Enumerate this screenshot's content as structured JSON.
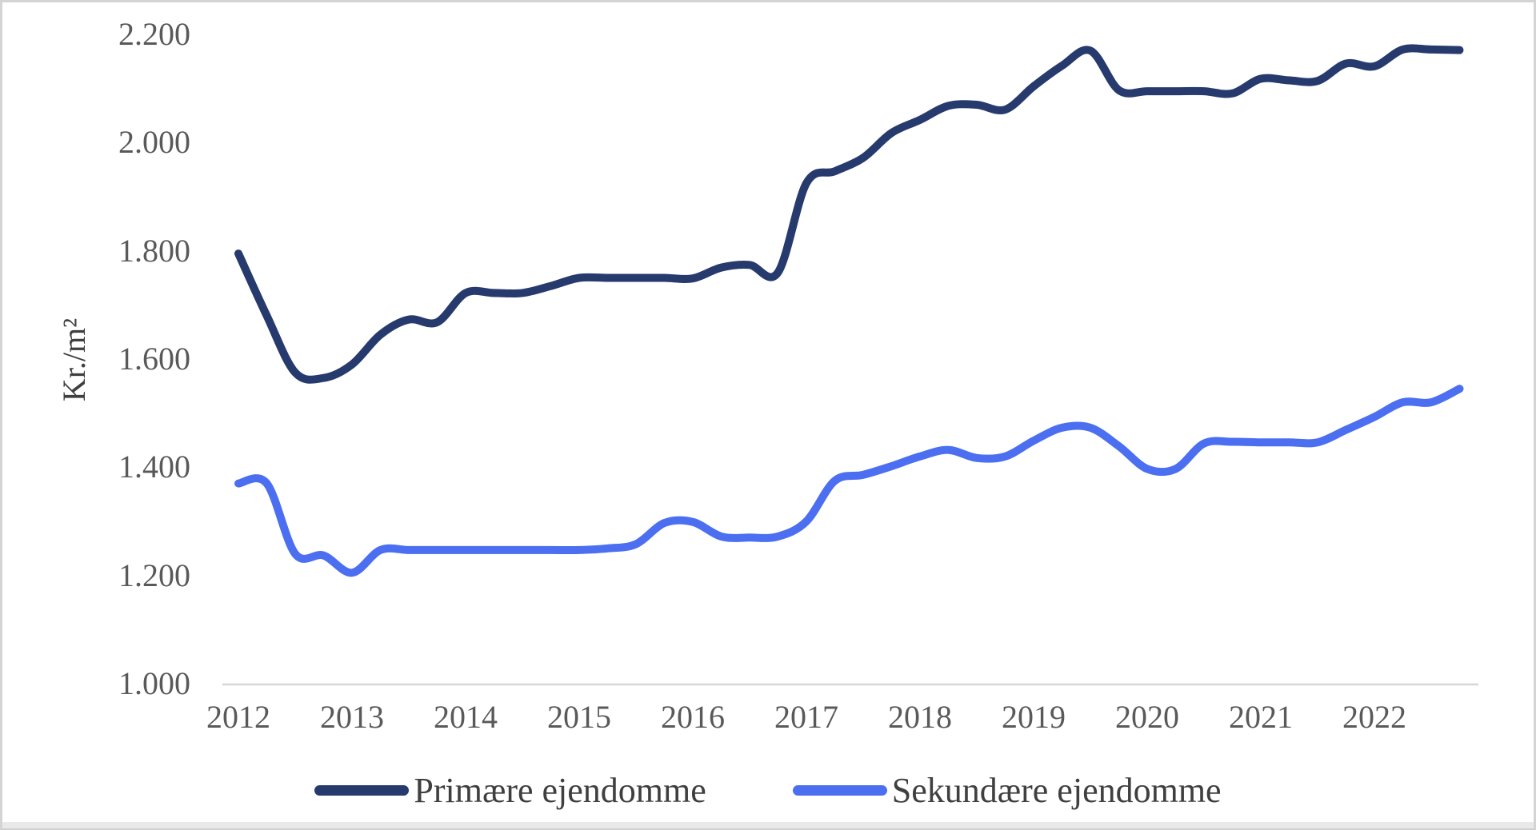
{
  "frame": {
    "background": "#ffffff",
    "border_color": "#d4d4d4",
    "bottom_strip_color": "#e9e9e9"
  },
  "axis": {
    "line_color": "#d6d6d6",
    "tick_label_color": "#595959"
  },
  "chart_data": {
    "type": "line",
    "title": "",
    "xlabel": "",
    "ylabel": "Kr./m²",
    "grid": "off",
    "legend_position": "bottom",
    "ylim": [
      1000,
      2200
    ],
    "y_tick_values": [
      2200,
      2000,
      1800,
      1600,
      1400,
      1200,
      1000
    ],
    "y_tick_labels": [
      "2.200",
      "2.000",
      "1.800",
      "1.600",
      "1.400",
      "1.200",
      "1.000"
    ],
    "x_tick_labels": [
      "2012",
      "2013",
      "2014",
      "2015",
      "2016",
      "2017",
      "2018",
      "2019",
      "2020",
      "2021",
      "2022"
    ],
    "points_per_year": 4,
    "x_start_year": 2012,
    "series": [
      {
        "name": "Primære ejendomme",
        "color": "#263a6d",
        "values": [
          1795,
          1680,
          1575,
          1565,
          1590,
          1645,
          1673,
          1668,
          1722,
          1722,
          1722,
          1735,
          1750,
          1750,
          1750,
          1750,
          1749,
          1769,
          1774,
          1760,
          1925,
          1947,
          1972,
          2018,
          2042,
          2068,
          2070,
          2061,
          2104,
          2142,
          2170,
          2097,
          2095,
          2095,
          2095,
          2091,
          2118,
          2115,
          2114,
          2146,
          2141,
          2172,
          2172,
          2171
        ]
      },
      {
        "name": "Sekundære ejendomme",
        "color": "#4b6ff0",
        "values": [
          1370,
          1370,
          1240,
          1237,
          1205,
          1247,
          1247,
          1247,
          1247,
          1247,
          1247,
          1247,
          1247,
          1250,
          1258,
          1297,
          1299,
          1272,
          1270,
          1272,
          1300,
          1375,
          1386,
          1402,
          1420,
          1432,
          1417,
          1420,
          1449,
          1473,
          1473,
          1439,
          1397,
          1397,
          1444,
          1447,
          1446,
          1446,
          1446,
          1469,
          1493,
          1520,
          1520,
          1545
        ]
      }
    ]
  }
}
